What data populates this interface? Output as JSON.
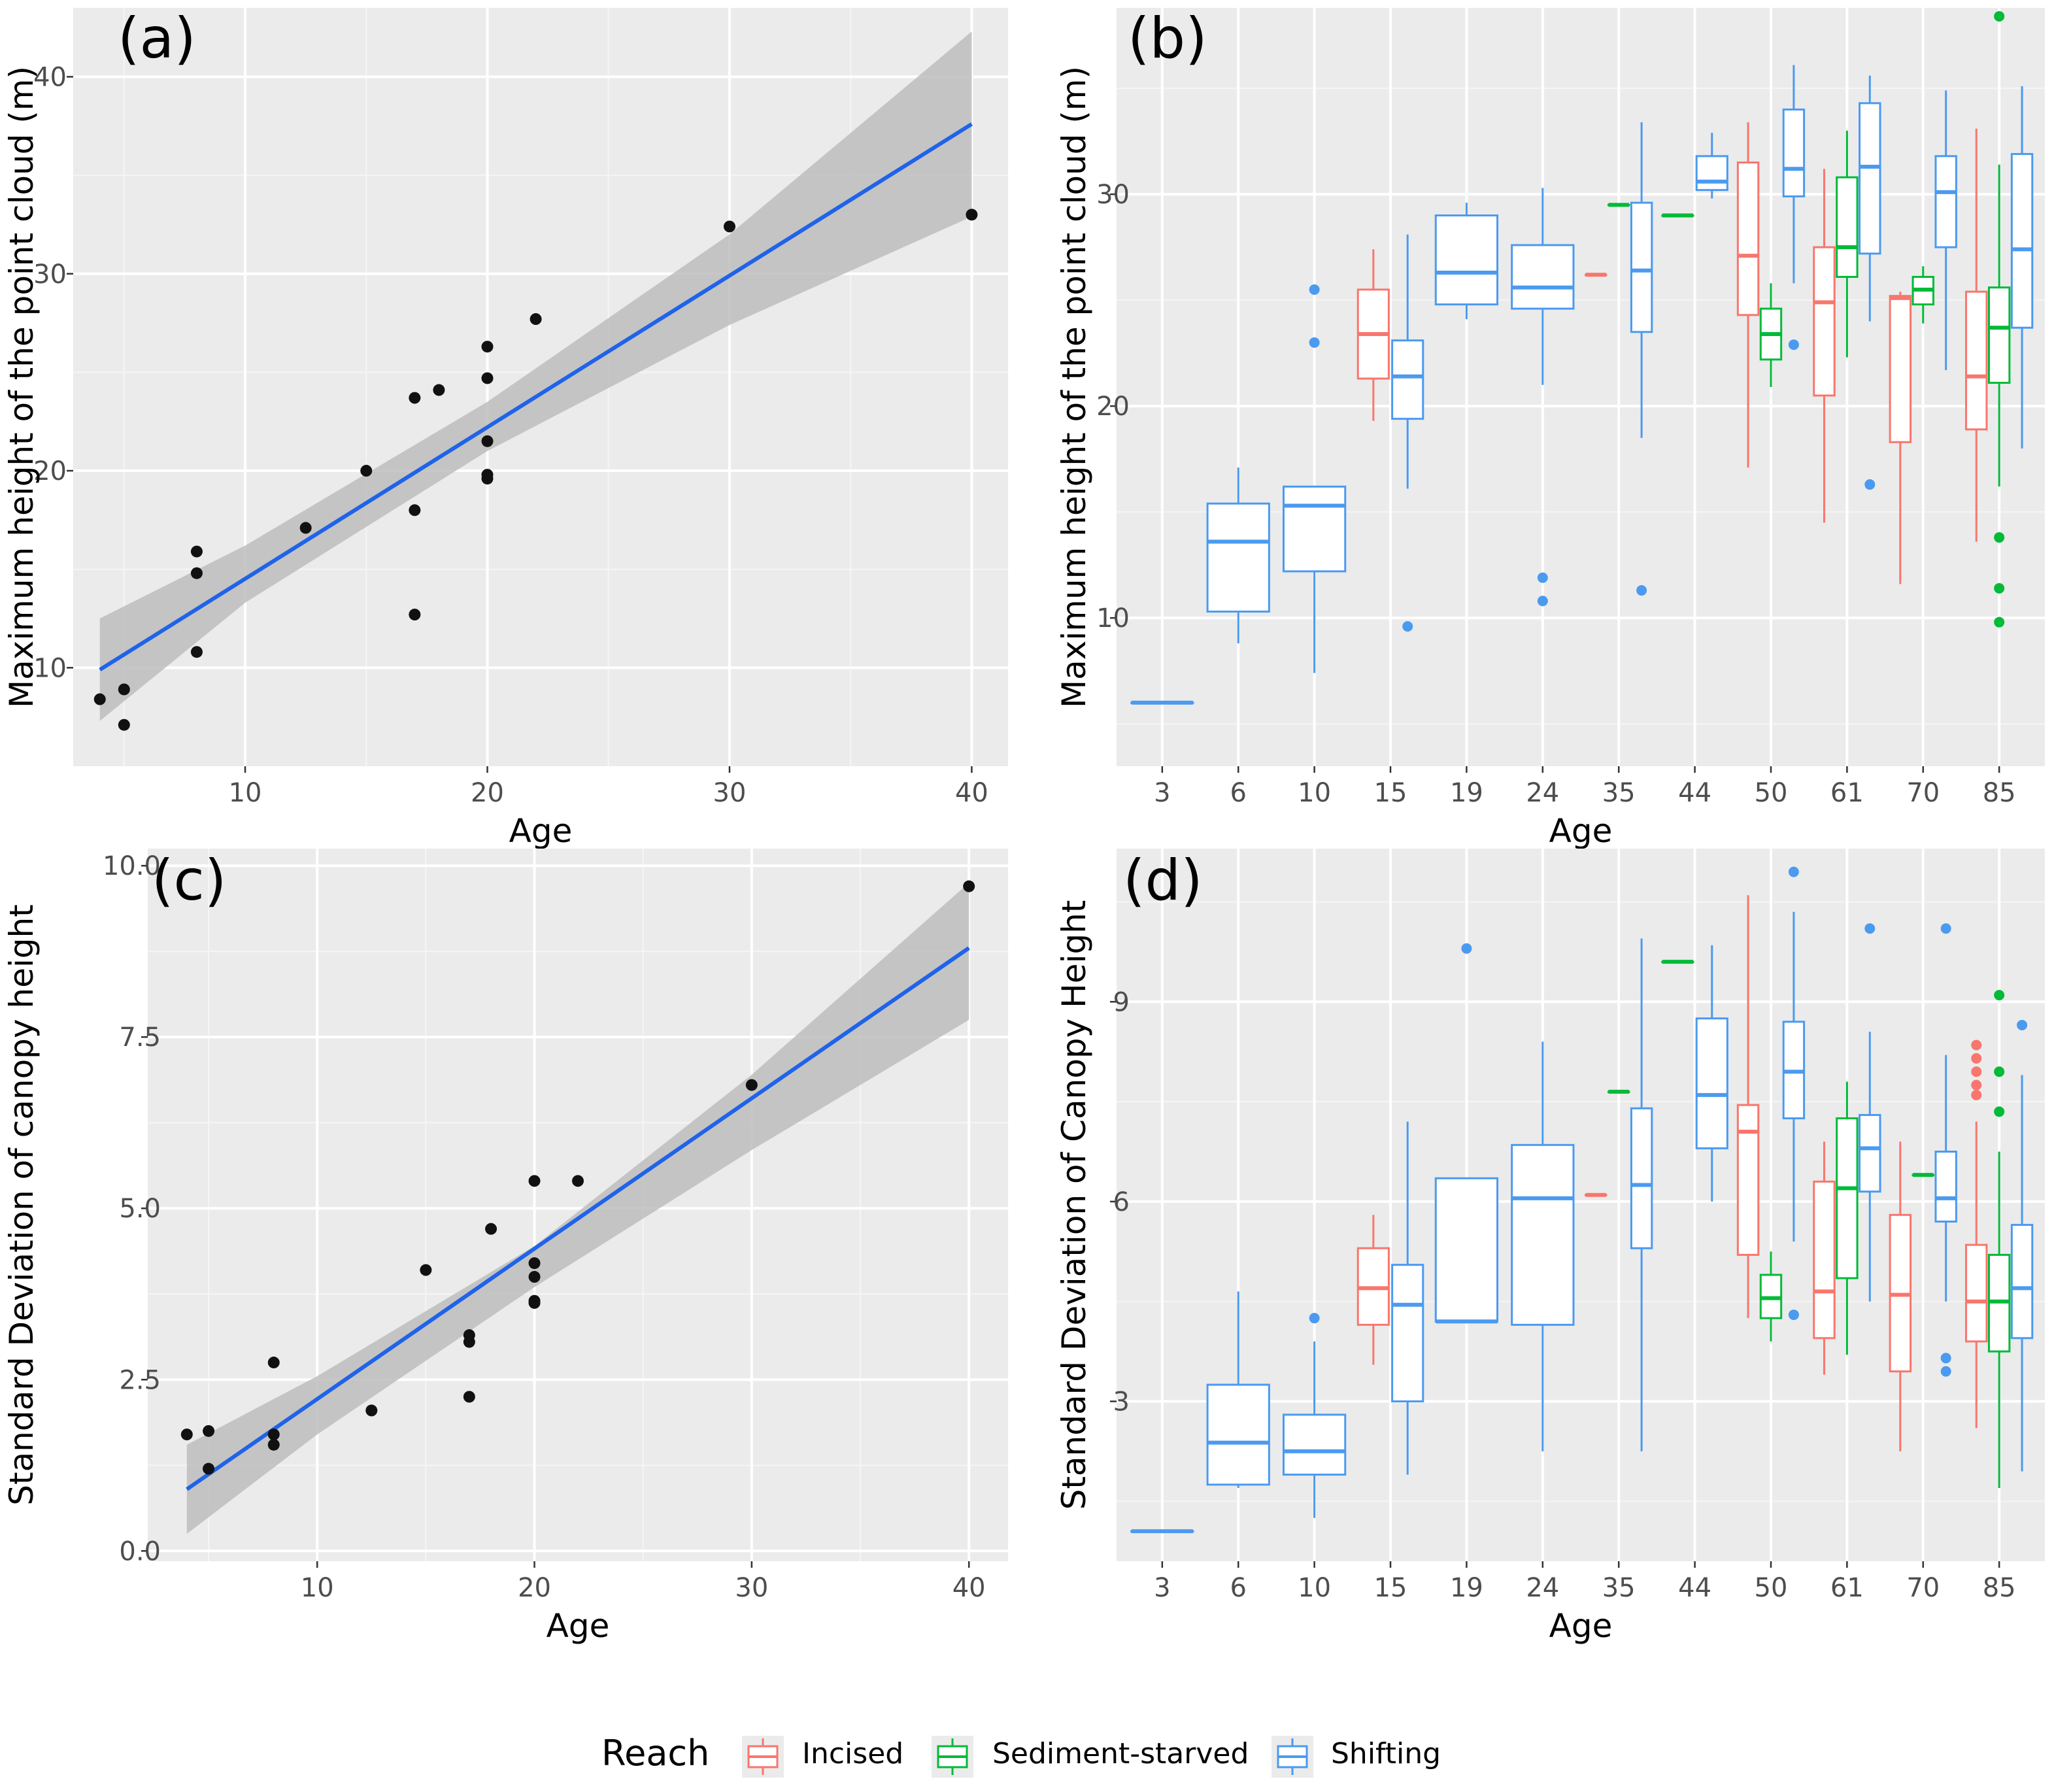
{
  "colors": {
    "panel_bg": "#ebebeb",
    "grid_major": "#ffffff",
    "grid_minor": "#f5f5f5",
    "tick_text": "#4d4d4d",
    "fit_line": "#1f63e8",
    "ci_band": "#bdbdbd",
    "point": "#111111",
    "Incised": "#f8766d",
    "Sediment-starved": "#00ba38",
    "Shifting": "#4a9af0"
  },
  "legend": {
    "title": "Reach",
    "items": [
      {
        "key": "Incised",
        "label": "Incised"
      },
      {
        "key": "Sediment-starved",
        "label": "Sediment-starved"
      },
      {
        "key": "Shifting",
        "label": "Shifting"
      }
    ]
  },
  "chart_data": [
    {
      "panel": "(a)",
      "type": "scatter",
      "xlabel": "Age",
      "ylabel": "Maximum height of the point cloud (m)",
      "xlim": [
        2.9,
        41.5
      ],
      "ylim": [
        5.0,
        43.5
      ],
      "xticks": [
        10,
        20,
        30,
        40
      ],
      "xtick_labels": [
        "10",
        "20",
        "30",
        "40"
      ],
      "yticks": [
        10,
        20,
        30,
        40
      ],
      "ytick_labels": [
        "10",
        "20",
        "30",
        "40"
      ],
      "points": [
        [
          4,
          8.4
        ],
        [
          5,
          8.9
        ],
        [
          5,
          7.1
        ],
        [
          8,
          15.9
        ],
        [
          8,
          14.8
        ],
        [
          8,
          10.8
        ],
        [
          12.5,
          17.1
        ],
        [
          15,
          20.0
        ],
        [
          17,
          23.7
        ],
        [
          17,
          18.0
        ],
        [
          17,
          12.7
        ],
        [
          18,
          24.1
        ],
        [
          20,
          26.3
        ],
        [
          20,
          24.7
        ],
        [
          20,
          21.5
        ],
        [
          20,
          19.8
        ],
        [
          20,
          19.6
        ],
        [
          22,
          27.7
        ],
        [
          30,
          32.4
        ],
        [
          40,
          33.0
        ]
      ],
      "fit": {
        "x": [
          4,
          40
        ],
        "y": [
          9.9,
          37.6
        ]
      },
      "ci": {
        "x": [
          4,
          10,
          20,
          30,
          40
        ],
        "lower": [
          7.3,
          13.3,
          21.0,
          27.4,
          32.9
        ],
        "upper": [
          12.5,
          16.2,
          23.5,
          32.0,
          42.3
        ]
      }
    },
    {
      "panel": "(b)",
      "type": "boxplot",
      "xlabel": "Age",
      "ylabel": "Maximum height of the point cloud (m)",
      "categories": [
        "3",
        "6",
        "10",
        "15",
        "19",
        "24",
        "35",
        "44",
        "50",
        "61",
        "70",
        "85"
      ],
      "ylim": [
        3.0,
        38.8
      ],
      "yticks": [
        10,
        20,
        30
      ],
      "ytick_labels": [
        "10",
        "20",
        "30"
      ],
      "boxes": [
        {
          "cat": "3",
          "reach": "Shifting",
          "min": 6.0,
          "q1": 6.0,
          "median": 6.0,
          "q3": 6.0,
          "max": 6.0,
          "outliers": []
        },
        {
          "cat": "6",
          "reach": "Shifting",
          "min": 8.8,
          "q1": 10.3,
          "median": 13.6,
          "q3": 15.4,
          "max": 17.1,
          "outliers": []
        },
        {
          "cat": "10",
          "reach": "Shifting",
          "min": 7.4,
          "q1": 12.2,
          "median": 15.3,
          "q3": 16.2,
          "max": 16.2,
          "outliers": [
            25.5,
            23.0
          ]
        },
        {
          "cat": "15",
          "reach": "Incised",
          "min": 19.3,
          "q1": 21.3,
          "median": 23.4,
          "q3": 25.5,
          "max": 27.4,
          "outliers": []
        },
        {
          "cat": "15",
          "reach": "Shifting",
          "min": 16.1,
          "q1": 19.4,
          "median": 21.4,
          "q3": 23.1,
          "max": 28.1,
          "outliers": [
            9.6
          ]
        },
        {
          "cat": "19",
          "reach": "Shifting",
          "min": 24.1,
          "q1": 24.8,
          "median": 26.3,
          "q3": 29.0,
          "max": 29.6,
          "outliers": []
        },
        {
          "cat": "24",
          "reach": "Shifting",
          "min": 21.0,
          "q1": 24.6,
          "median": 25.6,
          "q3": 27.6,
          "max": 30.3,
          "outliers": [
            11.9,
            10.8
          ]
        },
        {
          "cat": "35",
          "reach": "Incised",
          "min": 26.2,
          "q1": 26.2,
          "median": 26.2,
          "q3": 26.2,
          "max": 26.2,
          "outliers": []
        },
        {
          "cat": "35",
          "reach": "Sediment-starved",
          "min": 29.5,
          "q1": 29.5,
          "median": 29.5,
          "q3": 29.5,
          "max": 29.5,
          "outliers": []
        },
        {
          "cat": "35",
          "reach": "Shifting",
          "min": 18.5,
          "q1": 23.5,
          "median": 26.4,
          "q3": 29.6,
          "max": 33.4,
          "outliers": [
            11.3
          ]
        },
        {
          "cat": "44",
          "reach": "Sediment-starved",
          "min": 29.0,
          "q1": 29.0,
          "median": 29.0,
          "q3": 29.0,
          "max": 29.0,
          "outliers": []
        },
        {
          "cat": "44",
          "reach": "Shifting",
          "min": 29.8,
          "q1": 30.2,
          "median": 30.6,
          "q3": 31.8,
          "max": 32.9,
          "outliers": []
        },
        {
          "cat": "50",
          "reach": "Incised",
          "min": 17.1,
          "q1": 24.3,
          "median": 27.1,
          "q3": 31.5,
          "max": 33.4,
          "outliers": []
        },
        {
          "cat": "50",
          "reach": "Sediment-starved",
          "min": 20.9,
          "q1": 22.2,
          "median": 23.4,
          "q3": 24.6,
          "max": 25.8,
          "outliers": []
        },
        {
          "cat": "50",
          "reach": "Shifting",
          "min": 25.8,
          "q1": 29.9,
          "median": 31.2,
          "q3": 34.0,
          "max": 36.1,
          "outliers": [
            22.9
          ]
        },
        {
          "cat": "61",
          "reach": "Incised",
          "min": 14.5,
          "q1": 20.5,
          "median": 24.9,
          "q3": 27.5,
          "max": 31.2,
          "outliers": []
        },
        {
          "cat": "61",
          "reach": "Sediment-starved",
          "min": 22.3,
          "q1": 26.1,
          "median": 27.5,
          "q3": 30.8,
          "max": 33.0,
          "outliers": []
        },
        {
          "cat": "61",
          "reach": "Shifting",
          "min": 24.0,
          "q1": 27.2,
          "median": 31.3,
          "q3": 34.3,
          "max": 35.6,
          "outliers": [
            16.3
          ]
        },
        {
          "cat": "70",
          "reach": "Incised",
          "min": 11.6,
          "q1": 18.3,
          "median": 25.1,
          "q3": 25.2,
          "max": 25.4,
          "outliers": []
        },
        {
          "cat": "70",
          "reach": "Sediment-starved",
          "min": 23.9,
          "q1": 24.8,
          "median": 25.5,
          "q3": 26.1,
          "max": 26.6,
          "outliers": []
        },
        {
          "cat": "70",
          "reach": "Shifting",
          "min": 21.7,
          "q1": 27.5,
          "median": 30.1,
          "q3": 31.8,
          "max": 34.9,
          "outliers": []
        },
        {
          "cat": "85",
          "reach": "Incised",
          "min": 13.6,
          "q1": 18.9,
          "median": 21.4,
          "q3": 25.4,
          "max": 33.1,
          "outliers": []
        },
        {
          "cat": "85",
          "reach": "Sediment-starved",
          "min": 16.2,
          "q1": 21.1,
          "median": 23.7,
          "q3": 25.6,
          "max": 31.4,
          "outliers": [
            38.4,
            13.8,
            11.4,
            9.8
          ]
        },
        {
          "cat": "85",
          "reach": "Shifting",
          "min": 18.0,
          "q1": 23.7,
          "median": 27.4,
          "q3": 31.9,
          "max": 35.1,
          "outliers": []
        }
      ]
    },
    {
      "panel": "(c)",
      "type": "scatter",
      "xlabel": "Age",
      "ylabel": "Standard Deviation of canopy height",
      "xlim": [
        2.2,
        41.8
      ],
      "ylim": [
        -0.15,
        10.25
      ],
      "xticks": [
        10,
        20,
        30,
        40
      ],
      "xtick_labels": [
        "10",
        "20",
        "30",
        "40"
      ],
      "yticks": [
        0,
        2.5,
        5,
        7.5,
        10
      ],
      "ytick_labels": [
        "0.0",
        "2.5",
        "5.0",
        "7.5",
        "10.0"
      ],
      "points": [
        [
          4,
          1.7
        ],
        [
          5,
          1.75
        ],
        [
          5,
          1.2
        ],
        [
          8,
          2.75
        ],
        [
          8,
          1.7
        ],
        [
          8,
          1.55
        ],
        [
          12.5,
          2.05
        ],
        [
          15,
          4.1
        ],
        [
          17,
          3.15
        ],
        [
          17,
          3.05
        ],
        [
          17,
          2.25
        ],
        [
          18,
          4.7
        ],
        [
          20,
          5.4
        ],
        [
          20,
          4.2
        ],
        [
          20,
          4.0
        ],
        [
          20,
          3.65
        ],
        [
          20,
          3.62
        ],
        [
          22,
          5.4
        ],
        [
          30,
          6.8
        ],
        [
          40,
          9.7
        ]
      ],
      "fit": {
        "x": [
          4,
          40
        ],
        "y": [
          0.9,
          8.8
        ]
      },
      "ci": {
        "x": [
          4,
          10,
          20,
          30,
          40
        ],
        "lower": [
          0.25,
          1.7,
          3.85,
          5.85,
          7.75
        ],
        "upper": [
          1.55,
          2.55,
          4.45,
          6.95,
          9.75
        ]
      }
    },
    {
      "panel": "(d)",
      "type": "boxplot",
      "xlabel": "Age",
      "ylabel": "Standard Deviation of Canopy Height",
      "categories": [
        "3",
        "6",
        "10",
        "15",
        "19",
        "24",
        "35",
        "44",
        "50",
        "61",
        "70",
        "85"
      ],
      "ylim": [
        0.6,
        11.3
      ],
      "yticks": [
        3,
        6,
        9
      ],
      "ytick_labels": [
        "3",
        "6",
        "9"
      ],
      "boxes": [
        {
          "cat": "3",
          "reach": "Shifting",
          "min": 1.05,
          "q1": 1.05,
          "median": 1.05,
          "q3": 1.05,
          "max": 1.05,
          "outliers": []
        },
        {
          "cat": "6",
          "reach": "Shifting",
          "min": 1.7,
          "q1": 1.75,
          "median": 2.38,
          "q3": 3.25,
          "max": 4.65,
          "outliers": []
        },
        {
          "cat": "10",
          "reach": "Shifting",
          "min": 1.25,
          "q1": 1.9,
          "median": 2.25,
          "q3": 2.8,
          "max": 3.9,
          "outliers": [
            4.25
          ]
        },
        {
          "cat": "15",
          "reach": "Incised",
          "min": 3.55,
          "q1": 4.15,
          "median": 4.7,
          "q3": 5.3,
          "max": 5.8,
          "outliers": []
        },
        {
          "cat": "15",
          "reach": "Shifting",
          "min": 1.9,
          "q1": 3.0,
          "median": 4.45,
          "q3": 5.05,
          "max": 7.2,
          "outliers": []
        },
        {
          "cat": "19",
          "reach": "Shifting",
          "min": 4.2,
          "q1": 4.2,
          "median": 4.2,
          "q3": 6.35,
          "max": 6.35,
          "outliers": [
            9.8
          ]
        },
        {
          "cat": "24",
          "reach": "Shifting",
          "min": 2.25,
          "q1": 4.15,
          "median": 6.05,
          "q3": 6.85,
          "max": 8.4,
          "outliers": []
        },
        {
          "cat": "35",
          "reach": "Incised",
          "min": 6.1,
          "q1": 6.1,
          "median": 6.1,
          "q3": 6.1,
          "max": 6.1,
          "outliers": []
        },
        {
          "cat": "35",
          "reach": "Sediment-starved",
          "min": 7.65,
          "q1": 7.65,
          "median": 7.65,
          "q3": 7.65,
          "max": 7.65,
          "outliers": []
        },
        {
          "cat": "35",
          "reach": "Shifting",
          "min": 2.25,
          "q1": 5.3,
          "median": 6.25,
          "q3": 7.4,
          "max": 9.95,
          "outliers": []
        },
        {
          "cat": "44",
          "reach": "Sediment-starved",
          "min": 9.6,
          "q1": 9.6,
          "median": 9.6,
          "q3": 9.6,
          "max": 9.6,
          "outliers": []
        },
        {
          "cat": "44",
          "reach": "Shifting",
          "min": 6.0,
          "q1": 6.8,
          "median": 7.6,
          "q3": 8.75,
          "max": 9.85,
          "outliers": []
        },
        {
          "cat": "50",
          "reach": "Incised",
          "min": 4.25,
          "q1": 5.2,
          "median": 7.05,
          "q3": 7.45,
          "max": 10.6,
          "outliers": []
        },
        {
          "cat": "50",
          "reach": "Sediment-starved",
          "min": 3.9,
          "q1": 4.25,
          "median": 4.55,
          "q3": 4.9,
          "max": 5.25,
          "outliers": []
        },
        {
          "cat": "50",
          "reach": "Shifting",
          "min": 5.4,
          "q1": 7.25,
          "median": 7.95,
          "q3": 8.7,
          "max": 10.35,
          "outliers": [
            10.95,
            4.3
          ]
        },
        {
          "cat": "61",
          "reach": "Incised",
          "min": 3.4,
          "q1": 3.95,
          "median": 4.65,
          "q3": 6.3,
          "max": 6.9,
          "outliers": []
        },
        {
          "cat": "61",
          "reach": "Sediment-starved",
          "min": 3.7,
          "q1": 4.85,
          "median": 6.2,
          "q3": 7.25,
          "max": 7.8,
          "outliers": []
        },
        {
          "cat": "61",
          "reach": "Shifting",
          "min": 4.5,
          "q1": 6.15,
          "median": 6.8,
          "q3": 7.3,
          "max": 8.55,
          "outliers": [
            10.1
          ]
        },
        {
          "cat": "70",
          "reach": "Incised",
          "min": 2.25,
          "q1": 3.45,
          "median": 4.6,
          "q3": 5.8,
          "max": 6.9,
          "outliers": []
        },
        {
          "cat": "70",
          "reach": "Sediment-starved",
          "min": 6.4,
          "q1": 6.4,
          "median": 6.4,
          "q3": 6.4,
          "max": 6.4,
          "outliers": []
        },
        {
          "cat": "70",
          "reach": "Shifting",
          "min": 4.5,
          "q1": 5.7,
          "median": 6.05,
          "q3": 6.75,
          "max": 8.2,
          "outliers": [
            10.1,
            3.65,
            3.45
          ]
        },
        {
          "cat": "85",
          "reach": "Incised",
          "min": 2.6,
          "q1": 3.9,
          "median": 4.5,
          "q3": 5.35,
          "max": 7.2,
          "outliers": [
            8.35,
            8.15,
            7.95,
            7.75,
            7.6
          ]
        },
        {
          "cat": "85",
          "reach": "Sediment-starved",
          "min": 1.7,
          "q1": 3.75,
          "median": 4.5,
          "q3": 5.2,
          "max": 6.75,
          "outliers": [
            9.1,
            7.95,
            7.35
          ]
        },
        {
          "cat": "85",
          "reach": "Shifting",
          "min": 1.95,
          "q1": 3.95,
          "median": 4.7,
          "q3": 5.65,
          "max": 7.9,
          "outliers": [
            8.65
          ]
        }
      ]
    }
  ]
}
